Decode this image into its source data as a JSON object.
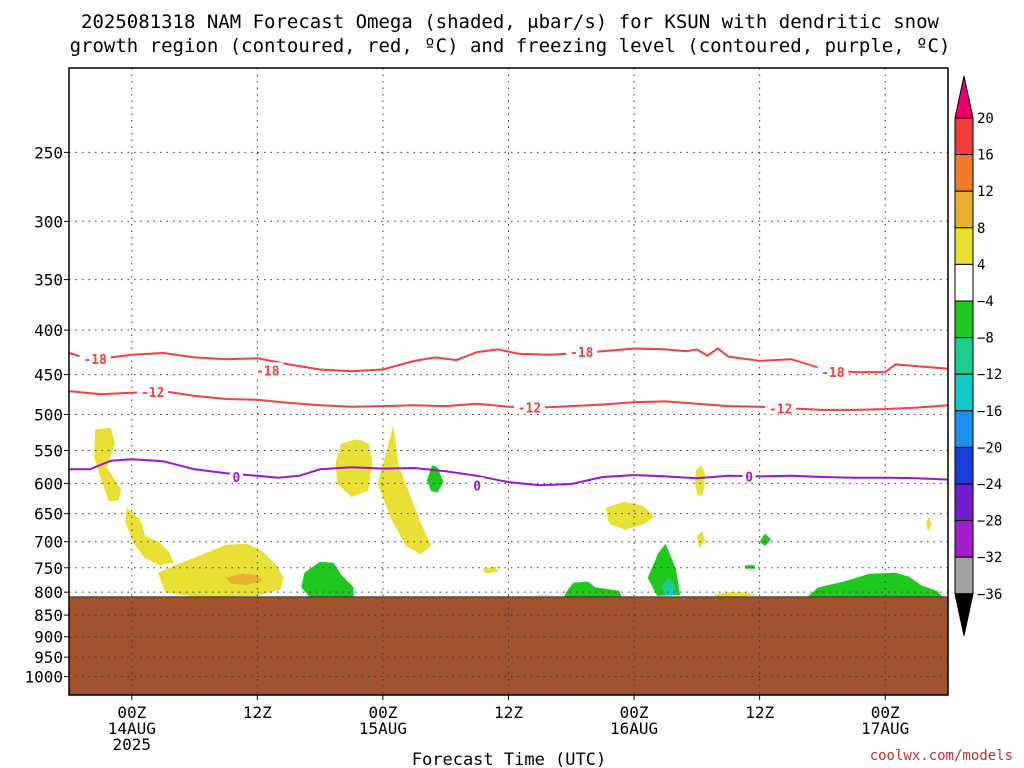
{
  "chart_data": {
    "type": "heatmap",
    "title_line1": "2025081318 NAM Forecast Omega (shaded, μbar/s) for KSUN with dendritic snow",
    "title_line2": "growth region (contoured, red, ºC) and freezing level (contoured, purple, ºC)",
    "xlabel": "Forecast Time (UTC)",
    "credit": "coolwx.com/models",
    "y_scale": "log-pressure",
    "y_range_hpa": [
      200,
      1050
    ],
    "y_ticks": [
      "250",
      "300",
      "350",
      "400",
      "450",
      "500",
      "550",
      "600",
      "650",
      "700",
      "750",
      "800",
      "850",
      "900",
      "950",
      "1000"
    ],
    "x_range_hours": [
      -6,
      78
    ],
    "x_ticks": [
      {
        "hour": 0,
        "line1": "00Z",
        "line2": "14AUG",
        "line3": "2025"
      },
      {
        "hour": 12,
        "line1": "12Z",
        "line2": "",
        "line3": ""
      },
      {
        "hour": 24,
        "line1": "00Z",
        "line2": "15AUG",
        "line3": ""
      },
      {
        "hour": 36,
        "line1": "12Z",
        "line2": "",
        "line3": ""
      },
      {
        "hour": 48,
        "line1": "00Z",
        "line2": "16AUG",
        "line3": ""
      },
      {
        "hour": 60,
        "line1": "12Z",
        "line2": "",
        "line3": ""
      },
      {
        "hour": 72,
        "line1": "00Z",
        "line2": "17AUG",
        "line3": ""
      }
    ],
    "grid": true,
    "terrain_top_hpa": 810,
    "terrain_color": "#a0522d",
    "colorbar": {
      "levels": [
        "20",
        "16",
        "12",
        "8",
        "4",
        "−4",
        "−8",
        "−12",
        "−16",
        "−20",
        "−24",
        "−28",
        "−32",
        "−36"
      ],
      "colors": [
        "#e8006e",
        "#f03c3c",
        "#f07c2a",
        "#e8b030",
        "#e8e034",
        "#ffffff",
        "#1ec81e",
        "#1ecc8c",
        "#18c8c8",
        "#1e90f0",
        "#1e3cd8",
        "#6e1ecc",
        "#a01ec8",
        "#a0a0a0",
        "#000000"
      ]
    },
    "contours": [
      {
        "label": "-18",
        "color": "#f04040",
        "points": [
          [
            -6,
            425
          ],
          [
            -4,
            432
          ],
          [
            -2,
            430
          ],
          [
            0,
            427
          ],
          [
            3,
            425
          ],
          [
            6,
            430
          ],
          [
            9,
            432
          ],
          [
            12,
            431
          ],
          [
            15,
            438
          ],
          [
            18,
            444
          ],
          [
            21,
            446
          ],
          [
            24,
            444
          ],
          [
            27,
            434
          ],
          [
            29,
            430
          ],
          [
            31,
            433
          ],
          [
            33,
            424
          ],
          [
            35,
            421
          ],
          [
            37,
            426
          ],
          [
            40,
            427
          ],
          [
            44,
            424
          ],
          [
            48,
            420
          ],
          [
            51,
            421
          ],
          [
            53,
            423
          ],
          [
            54,
            421
          ],
          [
            55,
            428
          ],
          [
            56,
            420
          ],
          [
            57,
            429
          ],
          [
            60,
            434
          ],
          [
            63,
            432
          ],
          [
            66,
            443
          ],
          [
            69,
            447
          ],
          [
            72,
            447
          ],
          [
            73,
            438
          ],
          [
            76,
            441
          ],
          [
            78,
            443
          ]
        ],
        "labels_at": [
          [
            -3.5,
            432
          ],
          [
            13,
            445
          ],
          [
            43,
            424
          ],
          [
            67,
            447
          ]
        ]
      },
      {
        "label": "-12",
        "color": "#f04040",
        "points": [
          [
            -6,
            470
          ],
          [
            -3,
            474
          ],
          [
            0,
            472
          ],
          [
            3,
            470
          ],
          [
            6,
            476
          ],
          [
            9,
            480
          ],
          [
            12,
            481
          ],
          [
            15,
            485
          ],
          [
            18,
            488
          ],
          [
            21,
            490
          ],
          [
            24,
            489
          ],
          [
            27,
            488
          ],
          [
            30,
            489
          ],
          [
            33,
            486
          ],
          [
            36,
            490
          ],
          [
            39,
            491
          ],
          [
            42,
            489
          ],
          [
            45,
            487
          ],
          [
            48,
            484
          ],
          [
            51,
            483
          ],
          [
            54,
            486
          ],
          [
            57,
            489
          ],
          [
            60,
            490
          ],
          [
            63,
            492
          ],
          [
            66,
            494
          ],
          [
            69,
            494
          ],
          [
            72,
            493
          ],
          [
            75,
            491
          ],
          [
            78,
            488
          ]
        ],
        "labels_at": [
          [
            2,
            471
          ],
          [
            38,
            491
          ],
          [
            62,
            492
          ]
        ]
      },
      {
        "label": "0",
        "color": "#9b18c8",
        "points": [
          [
            -6,
            578
          ],
          [
            -4,
            578
          ],
          [
            -2,
            565
          ],
          [
            0,
            563
          ],
          [
            3,
            566
          ],
          [
            6,
            578
          ],
          [
            9,
            584
          ],
          [
            12,
            588
          ],
          [
            14,
            591
          ],
          [
            16,
            588
          ],
          [
            18,
            578
          ],
          [
            21,
            575
          ],
          [
            24,
            577
          ],
          [
            27,
            576
          ],
          [
            30,
            581
          ],
          [
            33,
            588
          ],
          [
            36,
            598
          ],
          [
            39,
            603
          ],
          [
            42,
            601
          ],
          [
            45,
            590
          ],
          [
            48,
            587
          ],
          [
            51,
            589
          ],
          [
            54,
            592
          ],
          [
            57,
            588
          ],
          [
            60,
            589
          ],
          [
            63,
            588
          ],
          [
            66,
            590
          ],
          [
            69,
            591
          ],
          [
            72,
            591
          ],
          [
            75,
            592
          ],
          [
            78,
            594
          ]
        ],
        "labels_at": [
          [
            10,
            590
          ],
          [
            33,
            603
          ],
          [
            59,
            589
          ]
        ]
      }
    ],
    "omega_regions": [
      {
        "value": 6,
        "color": "#e8e034",
        "points": [
          [
            -3.5,
            520
          ],
          [
            -2,
            518
          ],
          [
            -1.6,
            540
          ],
          [
            -2.4,
            575
          ],
          [
            -1,
            610
          ],
          [
            -1.3,
            628
          ],
          [
            -2.2,
            630
          ],
          [
            -2.8,
            600
          ],
          [
            -3.6,
            560
          ]
        ]
      },
      {
        "value": 6,
        "color": "#e8e034",
        "points": [
          [
            -0.5,
            640
          ],
          [
            0.8,
            660
          ],
          [
            1.3,
            690
          ],
          [
            2.6,
            700
          ],
          [
            3.6,
            720
          ],
          [
            4,
            740
          ],
          [
            2.6,
            745
          ],
          [
            1.2,
            730
          ],
          [
            0.1,
            700
          ],
          [
            -0.6,
            665
          ]
        ]
      },
      {
        "value": 6,
        "color": "#e8e034",
        "points": [
          [
            2.5,
            760
          ],
          [
            4.5,
            742
          ],
          [
            7,
            722
          ],
          [
            9,
            706
          ],
          [
            11,
            704
          ],
          [
            12.5,
            718
          ],
          [
            13.8,
            745
          ],
          [
            14.5,
            770
          ],
          [
            14.2,
            795
          ],
          [
            12,
            808
          ],
          [
            6,
            810
          ],
          [
            3.2,
            800
          ]
        ]
      },
      {
        "value": 10,
        "color": "#e8b030",
        "points": [
          [
            9,
            770
          ],
          [
            10.5,
            762
          ],
          [
            12,
            765
          ],
          [
            12.5,
            776
          ],
          [
            11,
            785
          ],
          [
            9.5,
            782
          ]
        ]
      },
      {
        "value": 6,
        "color": "#e8e034",
        "points": [
          [
            20,
            540
          ],
          [
            21.5,
            534
          ],
          [
            22.7,
            540
          ],
          [
            23,
            570
          ],
          [
            22.6,
            612
          ],
          [
            21,
            622
          ],
          [
            19.6,
            600
          ],
          [
            19.5,
            568
          ]
        ]
      },
      {
        "value": 6,
        "color": "#e8e034",
        "points": [
          [
            23.5,
            600
          ],
          [
            25,
            515
          ],
          [
            25.5,
            572
          ],
          [
            26.5,
            615
          ],
          [
            27.6,
            665
          ],
          [
            28.6,
            708
          ],
          [
            27.6,
            724
          ],
          [
            26.2,
            708
          ],
          [
            24.8,
            660
          ]
        ]
      },
      {
        "value": -6,
        "color": "#1ec81e",
        "points": [
          [
            16.5,
            760
          ],
          [
            18,
            738
          ],
          [
            19.3,
            740
          ],
          [
            20,
            764
          ],
          [
            21.2,
            790
          ],
          [
            21.2,
            810
          ],
          [
            17,
            810
          ],
          [
            16.2,
            790
          ]
        ]
      },
      {
        "value": -6,
        "color": "#1ec81e",
        "points": [
          [
            28.2,
            595
          ],
          [
            28.7,
            572
          ],
          [
            29.2,
            575
          ],
          [
            29.8,
            598
          ],
          [
            29.2,
            615
          ],
          [
            28.6,
            612
          ]
        ]
      },
      {
        "value": 6,
        "color": "#e8e034",
        "points": [
          [
            33.5,
            752
          ],
          [
            34.8,
            748
          ],
          [
            35,
            758
          ],
          [
            33.8,
            762
          ]
        ]
      },
      {
        "value": -6,
        "color": "#1ec81e",
        "points": [
          [
            41.5,
            800
          ],
          [
            42.2,
            780
          ],
          [
            43.6,
            778
          ],
          [
            44.3,
            790
          ],
          [
            46.6,
            797
          ],
          [
            46.8,
            810
          ],
          [
            41.3,
            810
          ]
        ]
      },
      {
        "value": 6,
        "color": "#e8e034",
        "points": [
          [
            45.3,
            640
          ],
          [
            47,
            630
          ],
          [
            48.8,
            636
          ],
          [
            50,
            655
          ],
          [
            49,
            668
          ],
          [
            47.2,
            678
          ],
          [
            45.6,
            668
          ]
        ]
      },
      {
        "value": -6,
        "color": "#1ec81e",
        "points": [
          [
            49.3,
            770
          ],
          [
            50.3,
            722
          ],
          [
            51,
            704
          ],
          [
            52,
            752
          ],
          [
            52.4,
            806
          ],
          [
            50.2,
            808
          ]
        ]
      },
      {
        "value": -10,
        "color": "#1ecc8c",
        "points": [
          [
            50.6,
            790
          ],
          [
            51.2,
            770
          ],
          [
            51.8,
            778
          ],
          [
            52,
            806
          ],
          [
            51,
            806
          ]
        ]
      },
      {
        "value": -14,
        "color": "#18c8c8",
        "points": [
          [
            51,
            803
          ],
          [
            51.4,
            790
          ],
          [
            51.8,
            800
          ],
          [
            51.6,
            808
          ]
        ]
      },
      {
        "value": 6,
        "color": "#e8e034",
        "points": [
          [
            53.9,
            580
          ],
          [
            54.4,
            572
          ],
          [
            54.8,
            585
          ],
          [
            54.6,
            618
          ],
          [
            54.1,
            620
          ],
          [
            53.8,
            600
          ]
        ]
      },
      {
        "value": 6,
        "color": "#e8e034",
        "points": [
          [
            54,
            690
          ],
          [
            54.5,
            680
          ],
          [
            54.8,
            700
          ],
          [
            54.2,
            712
          ]
        ]
      },
      {
        "value": 6,
        "color": "#e8e034",
        "points": [
          [
            55.5,
            806
          ],
          [
            57,
            800
          ],
          [
            58.5,
            800
          ],
          [
            59.8,
            806
          ],
          [
            58,
            810
          ],
          [
            56,
            810
          ]
        ]
      },
      {
        "value": -6,
        "color": "#1ec81e",
        "points": [
          [
            58.6,
            745
          ],
          [
            59.5,
            745
          ],
          [
            59.6,
            752
          ],
          [
            58.7,
            752
          ]
        ]
      },
      {
        "value": -6,
        "color": "#1ec81e",
        "points": [
          [
            60,
            700
          ],
          [
            60.5,
            685
          ],
          [
            61.1,
            696
          ],
          [
            60.5,
            708
          ]
        ]
      },
      {
        "value": -6,
        "color": "#1ec81e",
        "points": [
          [
            64.8,
            805
          ],
          [
            65.6,
            790
          ],
          [
            68,
            778
          ],
          [
            70.5,
            762
          ],
          [
            73,
            760
          ],
          [
            74.3,
            768
          ],
          [
            75.4,
            785
          ],
          [
            77,
            798
          ],
          [
            77.5,
            810
          ],
          [
            64.6,
            810
          ]
        ]
      },
      {
        "value": 6,
        "color": "#e8e034",
        "points": [
          [
            75.9,
            665
          ],
          [
            76.2,
            655
          ],
          [
            76.4,
            670
          ],
          [
            76.1,
            682
          ]
        ]
      },
      {
        "value": 6,
        "color": "#e8e034",
        "points": [
          [
            38,
            808
          ],
          [
            39.5,
            805
          ],
          [
            40.5,
            808
          ]
        ]
      }
    ]
  }
}
